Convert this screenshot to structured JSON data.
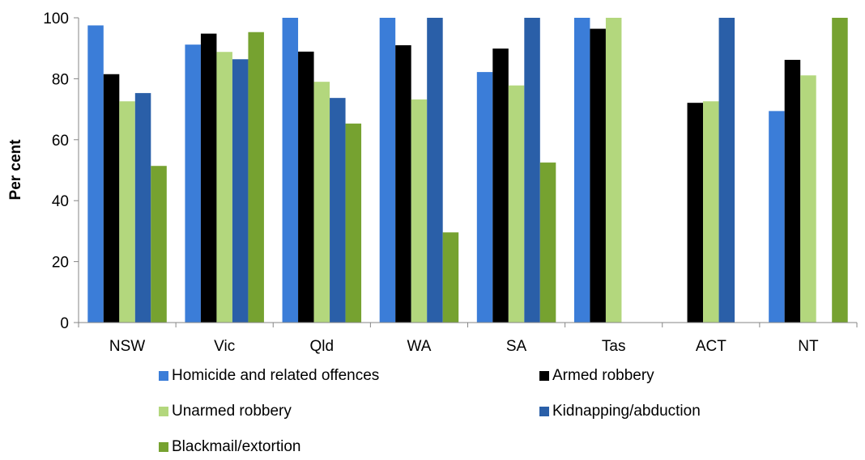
{
  "chart_data": {
    "type": "bar",
    "categories": [
      "NSW",
      "Vic",
      "Qld",
      "WA",
      "SA",
      "Tas",
      "ACT",
      "NT"
    ],
    "ylabel": "Per cent",
    "ylim": [
      0,
      100
    ],
    "yticks": [
      "0",
      "20",
      "40",
      "60",
      "80",
      "100"
    ],
    "grid": false,
    "legend_position": "bottom",
    "series": [
      {
        "name": "Homicide and related offences",
        "color": "#3B7DD8",
        "values": [
          97.5,
          91.2,
          100,
          100,
          82.2,
          100,
          null,
          69.4
        ]
      },
      {
        "name": "Armed robbery",
        "color": "#000000",
        "values": [
          81.5,
          94.8,
          88.9,
          91.0,
          89.9,
          96.4,
          72.1,
          86.2
        ]
      },
      {
        "name": "Unarmed robbery",
        "color": "#B3D77D",
        "values": [
          72.6,
          88.8,
          79.0,
          73.2,
          77.8,
          100,
          72.6,
          81.1
        ]
      },
      {
        "name": "Kidnapping/abduction",
        "color": "#2A5FA8",
        "values": [
          75.3,
          86.4,
          73.7,
          100,
          100,
          null,
          100,
          null
        ]
      },
      {
        "name": "Blackmail/extortion",
        "color": "#76A230",
        "values": [
          51.4,
          95.3,
          65.3,
          29.6,
          52.5,
          null,
          null,
          100
        ]
      }
    ]
  }
}
